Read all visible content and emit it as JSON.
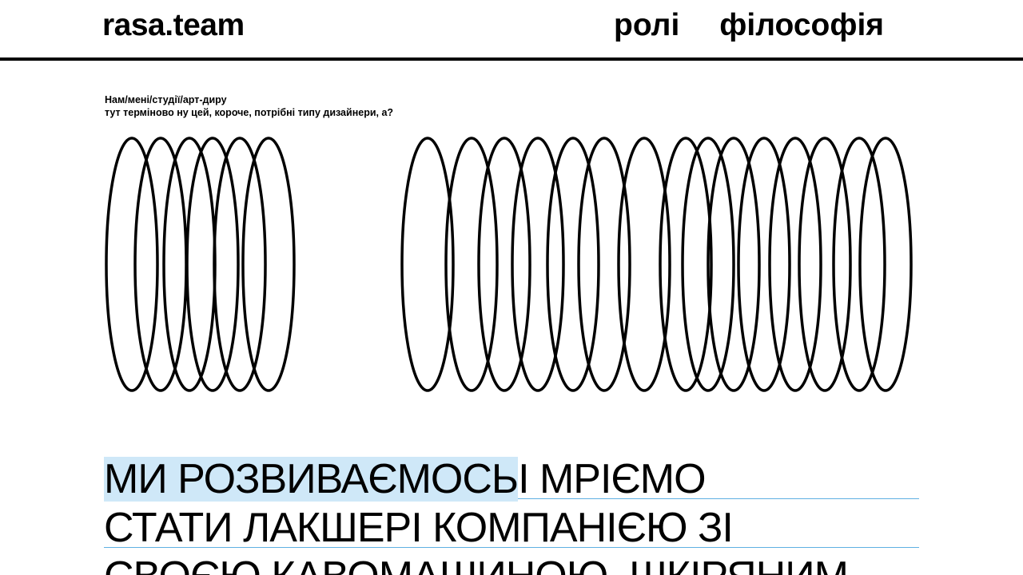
{
  "header": {
    "logo": "rasa.team",
    "nav": [
      {
        "label": "ролі"
      },
      {
        "label": "філософія"
      }
    ]
  },
  "tagline": {
    "line1": "Нам/мені/студії/арт-диру",
    "line2": "тут терміново ну цей, короче, потрібні типу дизайнери, а?"
  },
  "manifesto": {
    "line1_highlight": "МИ РОЗВИВАЄМОСЬ",
    "line1_rest": " І МРІЄМО",
    "line2": "СТАТИ ЛАКШЕРІ КОМПАНІЄЮ ЗІ",
    "line3": "СВОЄЮ КАВОМАШИНОЮ, ШКІРЯНИМ"
  },
  "colors": {
    "text": "#000000",
    "background": "#ffffff",
    "highlight": "#cfe8f8",
    "rule": "#5fb0e2"
  }
}
